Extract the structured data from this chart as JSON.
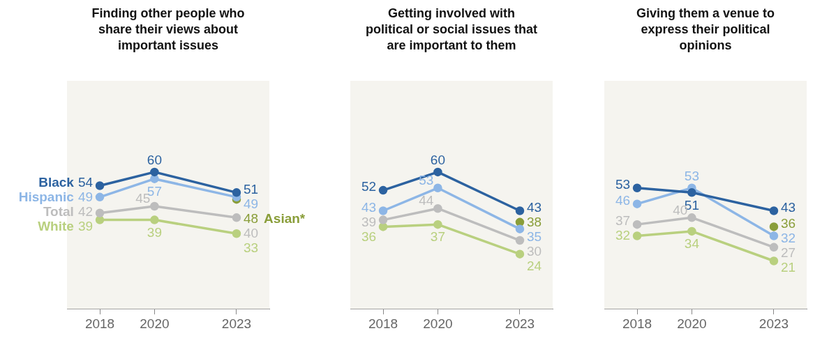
{
  "chart_data": [
    {
      "type": "line",
      "title": "Finding other people who share their views about important issues",
      "x": [
        2018,
        2020,
        2023
      ],
      "xlim": [
        2016.8,
        2024.2
      ],
      "xticks": [
        2018,
        2020,
        2023
      ],
      "ylim": [
        0,
        100
      ],
      "tick_labels": "x",
      "marker": "circle",
      "data_labels": true,
      "series": [
        {
          "name": "Black",
          "color": "#2c62a0",
          "values": [
            54,
            60,
            51
          ]
        },
        {
          "name": "Hispanic",
          "color": "#8db6e6",
          "values": [
            49,
            57,
            49
          ]
        },
        {
          "name": "Total",
          "color": "#bdbdbd",
          "values": [
            42,
            45,
            40
          ]
        },
        {
          "name": "White",
          "color": "#b9d07f",
          "values": [
            39,
            39,
            33
          ]
        },
        {
          "name": "Asian*",
          "color": "#8a9e3a",
          "values": [
            null,
            null,
            48
          ]
        }
      ]
    },
    {
      "type": "line",
      "title": "Getting involved with political or social issues that are important to them",
      "x": [
        2018,
        2020,
        2023
      ],
      "xlim": [
        2016.8,
        2024.2
      ],
      "xticks": [
        2018,
        2020,
        2023
      ],
      "ylim": [
        0,
        100
      ],
      "tick_labels": "x",
      "marker": "circle",
      "data_labels": true,
      "series": [
        {
          "color": "#2c62a0",
          "values": [
            52,
            60,
            43
          ]
        },
        {
          "color": "#8db6e6",
          "values": [
            43,
            53,
            35
          ]
        },
        {
          "color": "#bdbdbd",
          "values": [
            39,
            44,
            30
          ]
        },
        {
          "color": "#b9d07f",
          "values": [
            36,
            37,
            24
          ]
        },
        {
          "color": "#8a9e3a",
          "values": [
            null,
            null,
            38
          ]
        }
      ]
    },
    {
      "type": "line",
      "title": "Giving them a venue to express their political opinions",
      "x": [
        2018,
        2020,
        2023
      ],
      "xlim": [
        2016.8,
        2024.2
      ],
      "xticks": [
        2018,
        2020,
        2023
      ],
      "ylim": [
        0,
        100
      ],
      "tick_labels": "x",
      "marker": "circle",
      "data_labels": true,
      "series": [
        {
          "color": "#2c62a0",
          "values": [
            53,
            51,
            43
          ]
        },
        {
          "color": "#8db6e6",
          "values": [
            46,
            53,
            32
          ]
        },
        {
          "color": "#bdbdbd",
          "values": [
            37,
            40,
            27
          ]
        },
        {
          "color": "#b9d07f",
          "values": [
            32,
            34,
            21
          ]
        },
        {
          "color": "#8a9e3a",
          "values": [
            null,
            null,
            36
          ]
        }
      ]
    }
  ]
}
